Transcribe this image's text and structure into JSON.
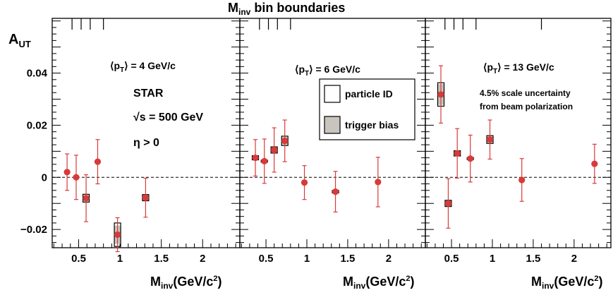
{
  "chart_data": {
    "type": "scatter",
    "top_title": "M",
    "top_title_sub": "inv",
    "top_title_rest": " bin boundaries",
    "ylabel_main": "A",
    "ylabel_sub": "UT",
    "xlabel_main": "M",
    "xlabel_sub": "inv",
    "xlabel_rest": "(GeV/c",
    "xlabel_sup": "2",
    "xlabel_end": ")",
    "ylim": [
      -0.027,
      0.061
    ],
    "xlim": [
      0.18,
      2.45
    ],
    "y_ticks": [
      {
        "value": -0.02,
        "label": "−0.02"
      },
      {
        "value": 0,
        "label": "0"
      },
      {
        "value": 0.02,
        "label": "0.02"
      },
      {
        "value": 0.04,
        "label": "0.04"
      }
    ],
    "series_color": "#d83a3a",
    "panels": [
      {
        "pt_prefix": "⟨p",
        "pt_sub": "T",
        "pt_suffix": "⟩ = 4 GeV/c",
        "x_ticks": [
          {
            "value": 0.5,
            "label": "0.5"
          },
          {
            "value": 1,
            "label": "1"
          },
          {
            "value": 1.5,
            "label": "1.5"
          },
          {
            "value": 2,
            "label": "2"
          }
        ],
        "bin_boundaries": [
          0.42,
          0.53,
          0.64,
          0.8
        ],
        "points": [
          {
            "x": 0.36,
            "y": 0.002,
            "err": 0.007,
            "pid": 0.0,
            "trig": 0.0
          },
          {
            "x": 0.47,
            "y": 0.0,
            "err": 0.0085,
            "pid": 0.0,
            "trig": 0.0
          },
          {
            "x": 0.59,
            "y": -0.008,
            "err": 0.009,
            "pid": 0.0015,
            "trig": 0.0012
          },
          {
            "x": 0.73,
            "y": 0.006,
            "err": 0.0085,
            "pid": 0.0,
            "trig": 0.0
          },
          {
            "x": 0.97,
            "y": -0.022,
            "err": 0.0065,
            "pid": 0.0045,
            "trig": 0.0035
          },
          {
            "x": 1.31,
            "y": -0.0078,
            "err": 0.0075,
            "pid": 0.0012,
            "trig": 0.001
          }
        ]
      },
      {
        "pt_prefix": "⟨p",
        "pt_sub": "T",
        "pt_suffix": "⟩ = 6 GeV/c",
        "x_ticks": [
          {
            "value": 0.5,
            "label": "0.5"
          },
          {
            "value": 1,
            "label": "1"
          },
          {
            "value": 1.5,
            "label": "1.5"
          },
          {
            "value": 2,
            "label": "2"
          }
        ],
        "bin_boundaries": [
          0.42,
          0.53,
          0.64,
          0.8
        ],
        "points": [
          {
            "x": 0.37,
            "y": 0.0075,
            "err": 0.007,
            "pid": 0.0008,
            "trig": 0.0006
          },
          {
            "x": 0.48,
            "y": 0.0062,
            "err": 0.0085,
            "pid": 0.0004,
            "trig": 0.0003
          },
          {
            "x": 0.6,
            "y": 0.0105,
            "err": 0.0085,
            "pid": 0.0012,
            "trig": 0.001
          },
          {
            "x": 0.73,
            "y": 0.014,
            "err": 0.008,
            "pid": 0.0018,
            "trig": 0.0015
          },
          {
            "x": 0.97,
            "y": -0.002,
            "err": 0.0065,
            "pid": 0.0,
            "trig": 0.0
          },
          {
            "x": 1.35,
            "y": -0.0055,
            "err": 0.0078,
            "pid": 0.0005,
            "trig": 0.0004
          },
          {
            "x": 1.87,
            "y": -0.0018,
            "err": 0.0095,
            "pid": 0.0,
            "trig": 0.0
          }
        ]
      },
      {
        "pt_prefix": "⟨p",
        "pt_sub": "T",
        "pt_suffix": "⟩ = 13 GeV/c",
        "x_ticks": [
          {
            "value": 0.5,
            "label": "0.5"
          },
          {
            "value": 1,
            "label": "1"
          },
          {
            "value": 1.5,
            "label": "1.5"
          },
          {
            "value": 2,
            "label": "2"
          }
        ],
        "bin_boundaries": [
          0.42,
          0.53,
          0.64,
          0.8,
          1.6
        ],
        "points": [
          {
            "x": 0.37,
            "y": 0.0318,
            "err": 0.011,
            "pid": 0.0045,
            "trig": 0.004
          },
          {
            "x": 0.46,
            "y": -0.01,
            "err": 0.0095,
            "pid": 0.0012,
            "trig": 0.001
          },
          {
            "x": 0.57,
            "y": 0.0092,
            "err": 0.0095,
            "pid": 0.001,
            "trig": 0.0008
          },
          {
            "x": 0.73,
            "y": 0.0072,
            "err": 0.009,
            "pid": 0.0004,
            "trig": 0.0003
          },
          {
            "x": 0.97,
            "y": 0.0145,
            "err": 0.0075,
            "pid": 0.0015,
            "trig": 0.0012
          },
          {
            "x": 1.36,
            "y": -0.001,
            "err": 0.0082,
            "pid": 0.0,
            "trig": 0.0
          },
          {
            "x": 2.25,
            "y": 0.0052,
            "err": 0.0075,
            "pid": 0.0,
            "trig": 0.0
          }
        ]
      }
    ],
    "annotations": {
      "experiment": "STAR",
      "energy_sqrt": "√s",
      "energy_rest": " = 500 GeV",
      "eta": "η > 0",
      "scale_line1": "4.5% scale uncertainty",
      "scale_line2": "from beam polarization"
    },
    "legend": [
      {
        "label": "particle ID",
        "style": "open box"
      },
      {
        "label": "trigger bias",
        "style": "filled box"
      }
    ],
    "trigger_fill": "#c9c4bd"
  }
}
